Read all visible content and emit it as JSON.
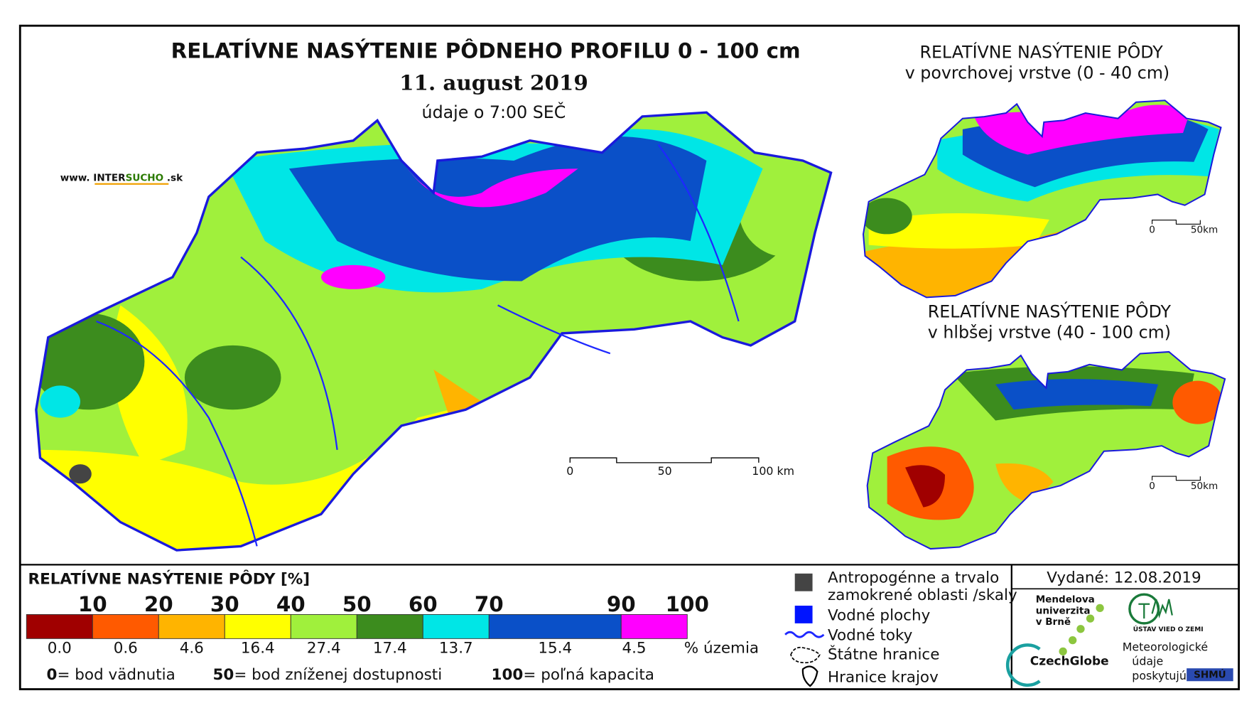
{
  "header": {
    "title": "RELATÍVNE NASÝTENIE PÔDNEHO PROFILU 0 - 100 cm",
    "date": "11. august 2019",
    "time_note": "údaje o 7:00 SEČ",
    "website": [
      "www. INTER",
      "SUCHO",
      " .sk"
    ]
  },
  "main_map": {
    "scale_labels": [
      "0",
      "50",
      "100 km"
    ]
  },
  "inset_top": {
    "title_line1": "RELATÍVNE NASÝTENIE PÔDY",
    "title_line2": "v povrchovej vrstve (0 - 40 cm)",
    "scale_labels": [
      "0",
      "50km"
    ]
  },
  "inset_bottom": {
    "title_line1": "RELATÍVNE NASÝTENIE PÔDY",
    "title_line2": "v hlbšej vrstve (40 - 100 cm)",
    "scale_labels": [
      "0",
      "50km"
    ]
  },
  "legend": {
    "title": "RELATÍVNE NASÝTENIE PÔDY [%]",
    "thresholds": [
      10,
      20,
      30,
      40,
      50,
      60,
      70,
      90,
      100
    ],
    "classes": [
      {
        "color": "#a00000",
        "share": {
          "value": 0,
          "label": "0.0"
        }
      },
      {
        "color": "#ff5a00",
        "share": 0.6
      },
      {
        "color": "#ffb400",
        "share": 4.6
      },
      {
        "color": "#ffff00",
        "share": 16.4
      },
      {
        "color": "#a0f03c",
        "share": 27.4
      },
      {
        "color": "#3c8c1e",
        "share": 17.4
      },
      {
        "color": "#00e6e6",
        "share": 13.7
      },
      {
        "color": "#0a50c8",
        "share": 15.4
      },
      {
        "color": "#ff00ff",
        "share": 4.5
      }
    ],
    "share_unit": "% územia",
    "notes": [
      {
        "key": "0",
        "text": "= bod vädnutia"
      },
      {
        "key": "50",
        "text": "= bod zníženej dostupnosti"
      },
      {
        "key": "100",
        "text": "= poľná kapacita"
      }
    ]
  },
  "symbols": [
    "Antropogénne a trvalo",
    "zamokrené oblasti /skaly",
    "Vodné plochy",
    "Vodné toky",
    "Štátne hranice",
    "Hranice krajov"
  ],
  "issued": "Vydané: 12.08.2019",
  "logos": {
    "mendel": [
      "Mendelova",
      "univerzita",
      "v Brně"
    ],
    "czechglobe": "CzechGlobe",
    "ustav": "ÚSTAV VIED O ZEMI",
    "provider": [
      "Meteorologické",
      "údaje",
      "poskytujú:"
    ],
    "shmu": "SHMÚ"
  }
}
